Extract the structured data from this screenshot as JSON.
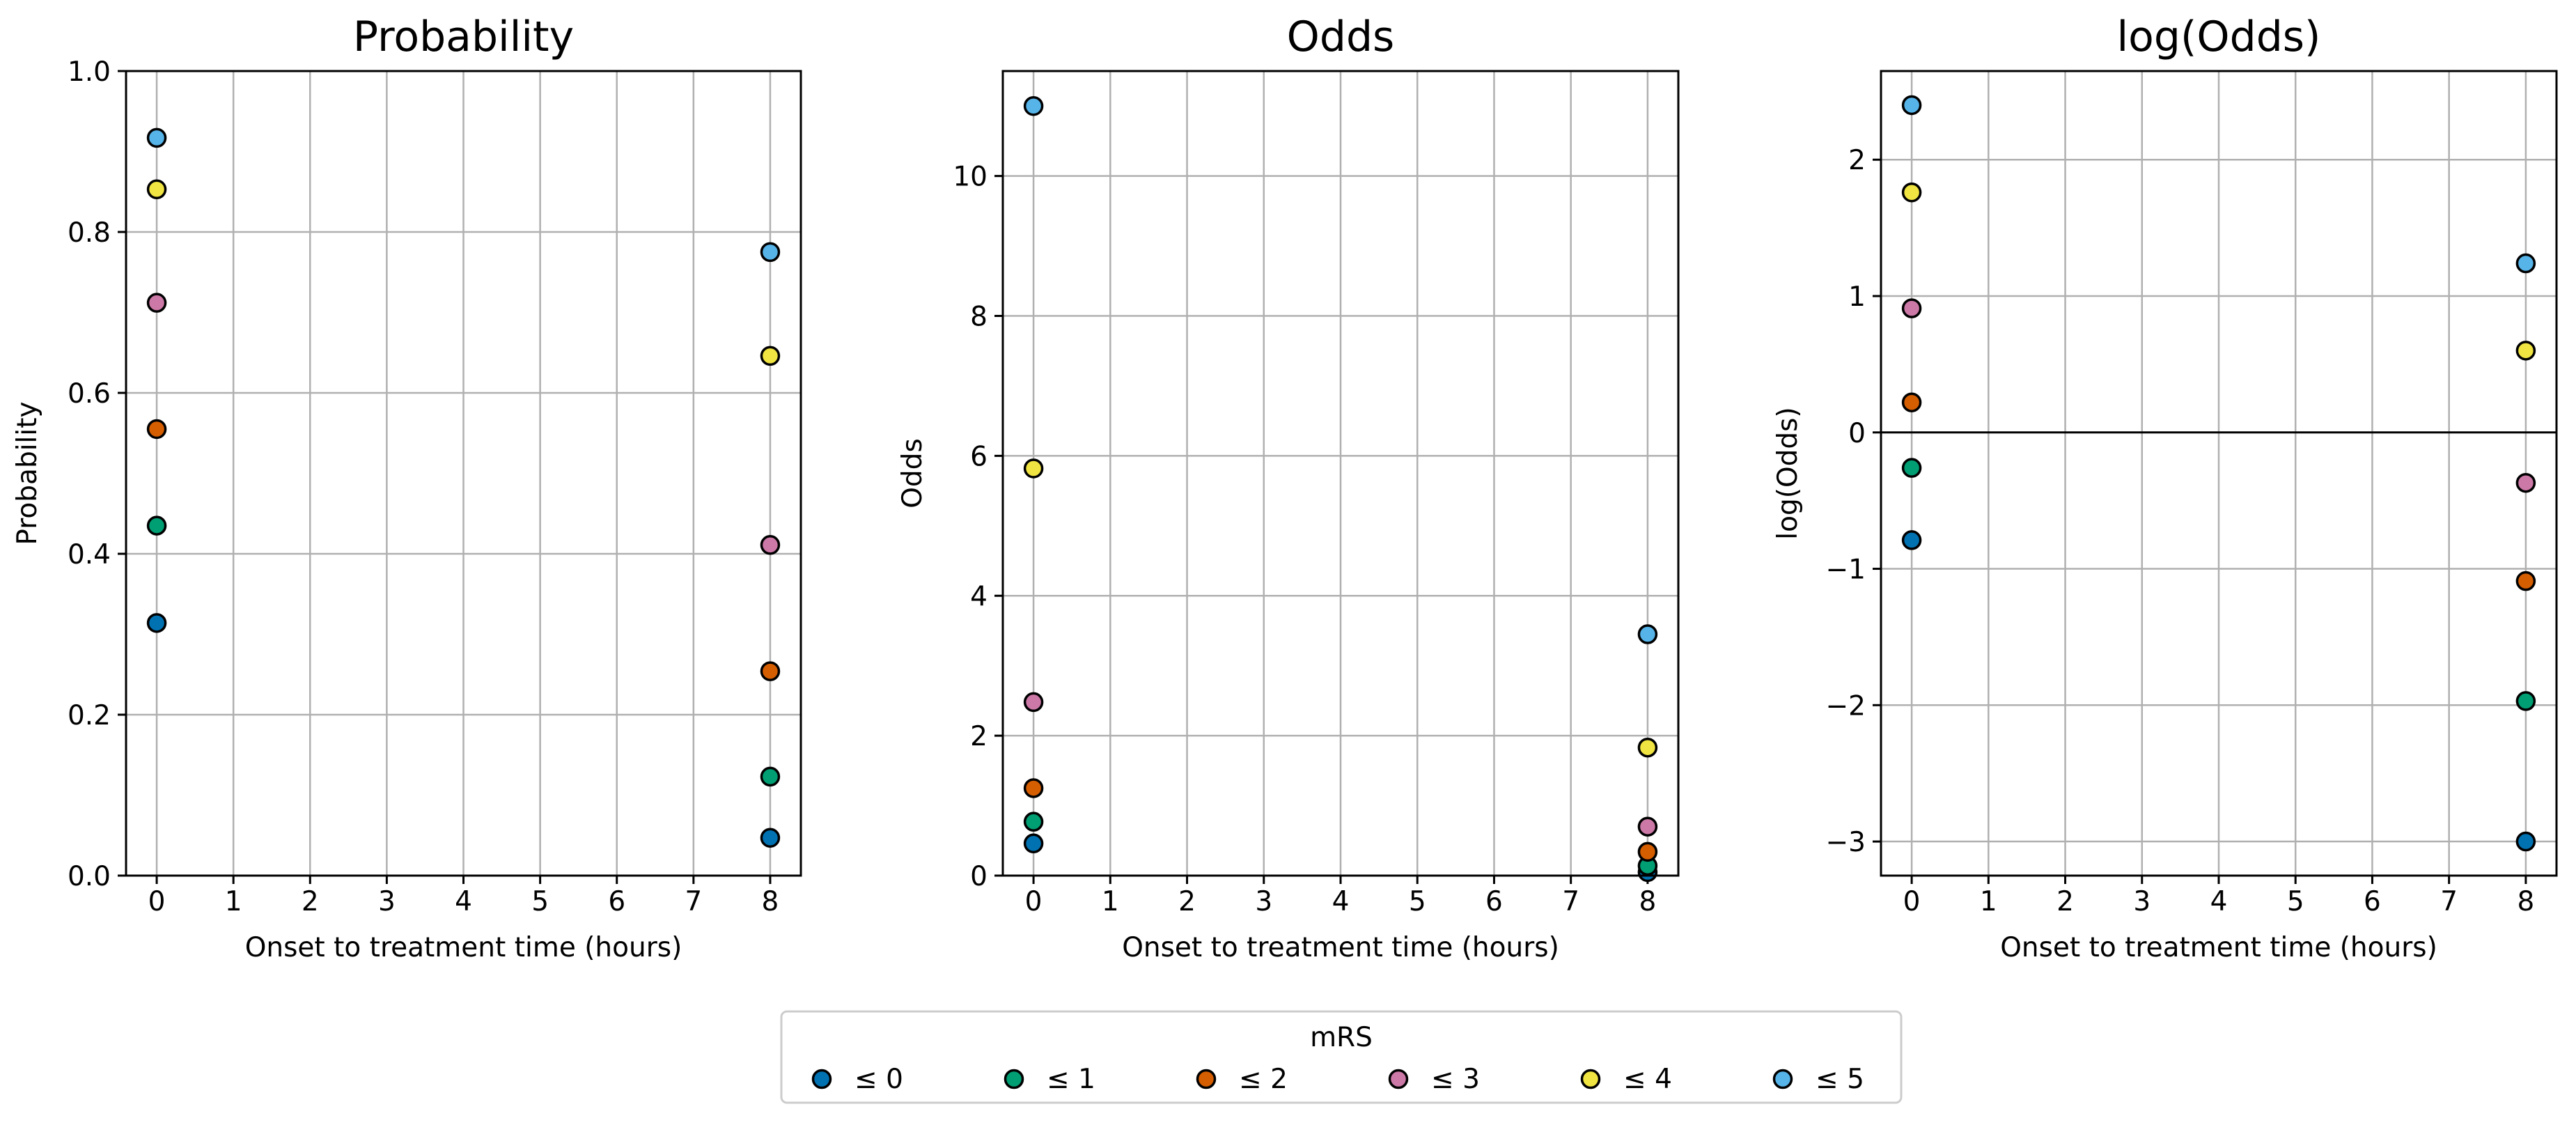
{
  "chart_data": [
    {
      "type": "scatter",
      "title": "Probability",
      "xlabel": "Onset to treatment time (hours)",
      "ylabel": "Probability",
      "xlim": [
        -0.4,
        8.4
      ],
      "ylim": [
        0.0,
        1.0
      ],
      "xticks": [
        "0",
        "1",
        "2",
        "3",
        "4",
        "5",
        "6",
        "7",
        "8"
      ],
      "yticks": [
        "0.0",
        "0.2",
        "0.4",
        "0.6",
        "0.8",
        "1.0"
      ],
      "grid": true,
      "zero_line": false,
      "x": [
        0,
        8
      ],
      "series": [
        {
          "name": "≤ 0",
          "values": [
            0.314,
            0.047
          ]
        },
        {
          "name": "≤ 1",
          "values": [
            0.435,
            0.123
          ]
        },
        {
          "name": "≤ 2",
          "values": [
            0.555,
            0.254
          ]
        },
        {
          "name": "≤ 3",
          "values": [
            0.712,
            0.411
          ]
        },
        {
          "name": "≤ 4",
          "values": [
            0.853,
            0.646
          ]
        },
        {
          "name": "≤ 5",
          "values": [
            0.917,
            0.775
          ]
        }
      ]
    },
    {
      "type": "scatter",
      "title": "Odds",
      "xlabel": "Onset to treatment time (hours)",
      "ylabel": "Odds",
      "xlim": [
        -0.4,
        8.4
      ],
      "ylim": [
        0.0,
        11.5
      ],
      "xticks": [
        "0",
        "1",
        "2",
        "3",
        "4",
        "5",
        "6",
        "7",
        "8"
      ],
      "yticks": [
        "0",
        "2",
        "4",
        "6",
        "8",
        "10"
      ],
      "grid": true,
      "zero_line": false,
      "x": [
        0,
        8
      ],
      "series": [
        {
          "name": "≤ 0",
          "values": [
            0.46,
            0.05
          ]
        },
        {
          "name": "≤ 1",
          "values": [
            0.77,
            0.14
          ]
        },
        {
          "name": "≤ 2",
          "values": [
            1.25,
            0.34
          ]
        },
        {
          "name": "≤ 3",
          "values": [
            2.48,
            0.7
          ]
        },
        {
          "name": "≤ 4",
          "values": [
            5.82,
            1.83
          ]
        },
        {
          "name": "≤ 5",
          "values": [
            11.0,
            3.45
          ]
        }
      ]
    },
    {
      "type": "scatter",
      "title": "log(Odds)",
      "xlabel": "Onset to treatment time (hours)",
      "ylabel": "log(Odds)",
      "xlim": [
        -0.4,
        8.4
      ],
      "ylim": [
        -3.25,
        2.65
      ],
      "xticks": [
        "0",
        "1",
        "2",
        "3",
        "4",
        "5",
        "6",
        "7",
        "8"
      ],
      "yticks": [
        "−3",
        "−2",
        "−1",
        "0",
        "1",
        "2"
      ],
      "grid": true,
      "zero_line": true,
      "x": [
        0,
        8
      ],
      "series": [
        {
          "name": "≤ 0",
          "values": [
            -0.79,
            -3.0
          ]
        },
        {
          "name": "≤ 1",
          "values": [
            -0.26,
            -1.97
          ]
        },
        {
          "name": "≤ 2",
          "values": [
            0.22,
            -1.09
          ]
        },
        {
          "name": "≤ 3",
          "values": [
            0.91,
            -0.37
          ]
        },
        {
          "name": "≤ 4",
          "values": [
            1.76,
            0.6
          ]
        },
        {
          "name": "≤ 5",
          "values": [
            2.4,
            1.24
          ]
        }
      ]
    }
  ],
  "legend": {
    "title": "mRS",
    "placement": "bottom-center",
    "entries": [
      "≤ 0",
      "≤ 1",
      "≤ 2",
      "≤ 3",
      "≤ 4",
      "≤ 5"
    ]
  },
  "colors": {
    "series": [
      "#0072B2",
      "#009E73",
      "#D55E00",
      "#CC79A7",
      "#F0E442",
      "#56B4E9"
    ],
    "grid": "#b0b0b0",
    "legend_border": "#cccccc"
  }
}
